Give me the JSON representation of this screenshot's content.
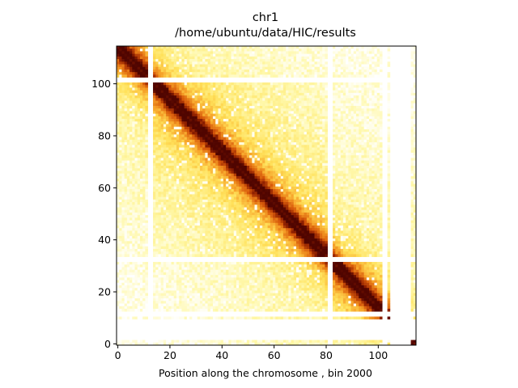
{
  "chart_data": {
    "type": "heatmap",
    "title": "chr1",
    "subtitle": "/home/ubuntu/data/HIC/results",
    "xlabel": "Position along the chromosome , bin 2000",
    "ylabel": "",
    "n_bins": 115,
    "xlim": [
      -0.5,
      114.5
    ],
    "ylim": [
      114.5,
      -0.5
    ],
    "xticks": [
      0,
      20,
      40,
      60,
      80,
      100
    ],
    "yticks": [
      0,
      20,
      40,
      60,
      80,
      100
    ],
    "colormap": "afmhot_r",
    "colors": {
      "low": "#ffffff",
      "mid_low": "#fff07a",
      "mid": "#f5a623",
      "mid_high": "#d25a0a",
      "high": "#5a0a00"
    },
    "empty_bins": [
      12,
      13,
      81,
      82,
      102,
      103,
      105,
      106,
      107,
      108,
      109,
      110,
      111,
      112
    ],
    "domains": [
      [
        0,
        12
      ],
      [
        14,
        80
      ],
      [
        83,
        101
      ]
    ]
  }
}
